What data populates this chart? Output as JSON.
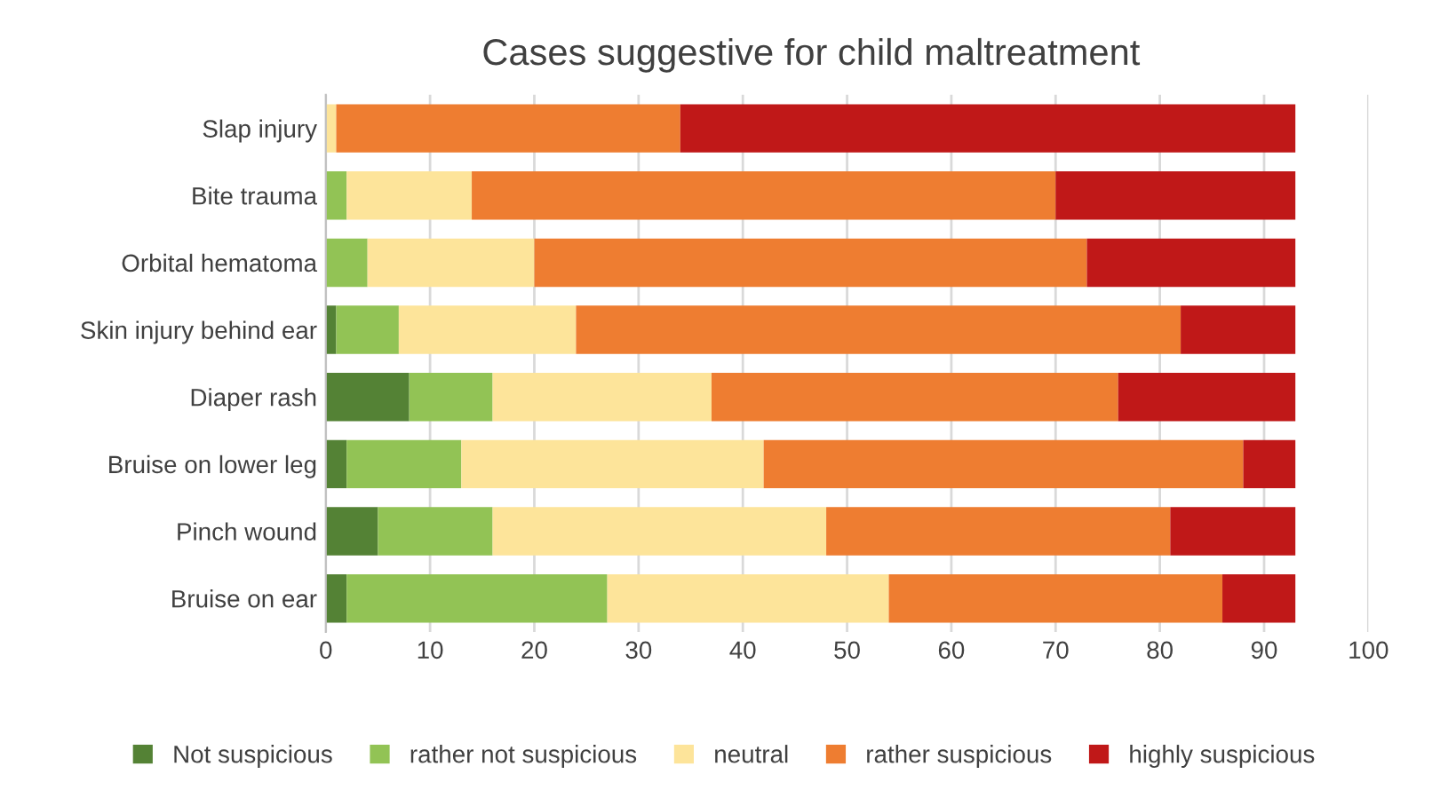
{
  "chart_data": {
    "type": "bar",
    "orientation": "horizontal",
    "stacked": true,
    "title": "Cases suggestive for child maltreatment",
    "categories": [
      "Slap injury",
      "Bite trauma",
      "Orbital hematoma",
      "Skin injury behind ear",
      "Diaper rash",
      "Bruise on lower leg",
      "Pinch wound",
      "Bruise on ear"
    ],
    "series": [
      {
        "name": "Not suspicious",
        "color": "#548235",
        "values": [
          0,
          0,
          0,
          1,
          8,
          2,
          5,
          2
        ]
      },
      {
        "name": "rather not suspicious",
        "color": "#92c355",
        "values": [
          0,
          2,
          4,
          6,
          8,
          11,
          11,
          25
        ]
      },
      {
        "name": "neutral",
        "color": "#fde49a",
        "values": [
          1,
          12,
          16,
          17,
          21,
          29,
          32,
          27
        ]
      },
      {
        "name": "rather suspicious",
        "color": "#ee7d31",
        "values": [
          33,
          56,
          53,
          58,
          39,
          46,
          33,
          32
        ]
      },
      {
        "name": "highly suspicious",
        "color": "#c01818",
        "values": [
          59,
          23,
          20,
          11,
          17,
          5,
          12,
          7
        ]
      }
    ],
    "xlim": [
      0,
      100
    ],
    "xticks": [
      0,
      10,
      20,
      30,
      40,
      50,
      60,
      70,
      80,
      90,
      100
    ],
    "grid": "x",
    "legend": "bottom"
  }
}
